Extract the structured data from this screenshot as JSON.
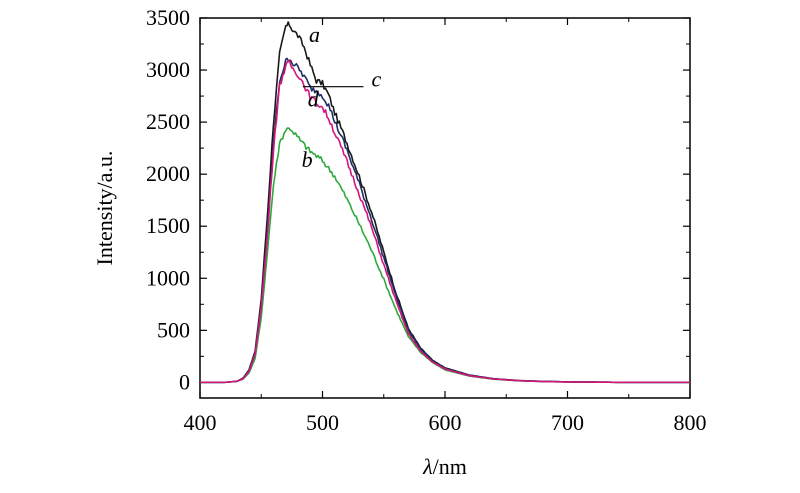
{
  "chart_data": {
    "type": "line",
    "title": "",
    "xlabel": {
      "symbol": "λ",
      "unit": "/nm"
    },
    "ylabel": "Intensity/a.u.",
    "xlim": [
      400,
      800
    ],
    "ylim": [
      -150,
      3500
    ],
    "xticks": [
      400,
      500,
      600,
      700,
      800
    ],
    "yticks": [
      0,
      500,
      1000,
      1500,
      2000,
      2500,
      3000,
      3500
    ],
    "grid": false,
    "legend": "inline-labels",
    "series": [
      {
        "name": "a",
        "color": "#1a1a1a",
        "points": [
          [
            400,
            0
          ],
          [
            420,
            0
          ],
          [
            430,
            10
          ],
          [
            435,
            40
          ],
          [
            440,
            120
          ],
          [
            445,
            300
          ],
          [
            450,
            800
          ],
          [
            455,
            1600
          ],
          [
            460,
            2500
          ],
          [
            465,
            3150
          ],
          [
            470,
            3420
          ],
          [
            473,
            3440
          ],
          [
            476,
            3380
          ],
          [
            480,
            3330
          ],
          [
            485,
            3220
          ],
          [
            490,
            3050
          ],
          [
            495,
            2900
          ],
          [
            500,
            2870
          ],
          [
            505,
            2760
          ],
          [
            510,
            2590
          ],
          [
            520,
            2300
          ],
          [
            530,
            1980
          ],
          [
            540,
            1640
          ],
          [
            550,
            1250
          ],
          [
            560,
            860
          ],
          [
            570,
            520
          ],
          [
            580,
            330
          ],
          [
            590,
            210
          ],
          [
            600,
            140
          ],
          [
            620,
            70
          ],
          [
            640,
            35
          ],
          [
            660,
            18
          ],
          [
            680,
            10
          ],
          [
            700,
            5
          ],
          [
            750,
            0
          ],
          [
            800,
            0
          ]
        ]
      },
      {
        "name": "b",
        "color": "#2eaa3c",
        "points": [
          [
            400,
            0
          ],
          [
            420,
            0
          ],
          [
            430,
            10
          ],
          [
            435,
            30
          ],
          [
            440,
            90
          ],
          [
            445,
            230
          ],
          [
            450,
            620
          ],
          [
            455,
            1250
          ],
          [
            460,
            1900
          ],
          [
            465,
            2300
          ],
          [
            470,
            2430
          ],
          [
            474,
            2440
          ],
          [
            478,
            2380
          ],
          [
            482,
            2320
          ],
          [
            490,
            2220
          ],
          [
            500,
            2130
          ],
          [
            510,
            1980
          ],
          [
            520,
            1760
          ],
          [
            530,
            1520
          ],
          [
            540,
            1270
          ],
          [
            550,
            990
          ],
          [
            560,
            700
          ],
          [
            570,
            440
          ],
          [
            580,
            290
          ],
          [
            590,
            190
          ],
          [
            600,
            120
          ],
          [
            620,
            60
          ],
          [
            640,
            30
          ],
          [
            660,
            15
          ],
          [
            680,
            8
          ],
          [
            700,
            4
          ],
          [
            750,
            0
          ],
          [
            800,
            0
          ]
        ]
      },
      {
        "name": "c",
        "color": "#1f2e66",
        "points": [
          [
            400,
            0
          ],
          [
            420,
            0
          ],
          [
            430,
            10
          ],
          [
            435,
            35
          ],
          [
            440,
            110
          ],
          [
            445,
            280
          ],
          [
            450,
            750
          ],
          [
            455,
            1450
          ],
          [
            460,
            2300
          ],
          [
            465,
            2900
          ],
          [
            470,
            3080
          ],
          [
            473,
            3120
          ],
          [
            476,
            3060
          ],
          [
            480,
            3020
          ],
          [
            485,
            2940
          ],
          [
            490,
            2830
          ],
          [
            495,
            2800
          ],
          [
            500,
            2760
          ],
          [
            505,
            2660
          ],
          [
            510,
            2510
          ],
          [
            520,
            2230
          ],
          [
            530,
            1910
          ],
          [
            540,
            1570
          ],
          [
            550,
            1200
          ],
          [
            560,
            830
          ],
          [
            570,
            500
          ],
          [
            580,
            320
          ],
          [
            590,
            205
          ],
          [
            600,
            135
          ],
          [
            620,
            68
          ],
          [
            640,
            34
          ],
          [
            660,
            17
          ],
          [
            680,
            9
          ],
          [
            700,
            5
          ],
          [
            750,
            0
          ],
          [
            800,
            0
          ]
        ]
      },
      {
        "name": "d",
        "color": "#d4157a",
        "points": [
          [
            400,
            0
          ],
          [
            420,
            0
          ],
          [
            430,
            10
          ],
          [
            435,
            33
          ],
          [
            440,
            105
          ],
          [
            445,
            270
          ],
          [
            450,
            720
          ],
          [
            455,
            1400
          ],
          [
            460,
            2250
          ],
          [
            465,
            2850
          ],
          [
            470,
            3040
          ],
          [
            473,
            3070
          ],
          [
            476,
            3010
          ],
          [
            480,
            2960
          ],
          [
            485,
            2860
          ],
          [
            490,
            2740
          ],
          [
            495,
            2690
          ],
          [
            500,
            2640
          ],
          [
            505,
            2540
          ],
          [
            510,
            2400
          ],
          [
            520,
            2120
          ],
          [
            530,
            1810
          ],
          [
            540,
            1490
          ],
          [
            550,
            1130
          ],
          [
            560,
            780
          ],
          [
            570,
            470
          ],
          [
            580,
            300
          ],
          [
            590,
            195
          ],
          [
            600,
            128
          ],
          [
            620,
            64
          ],
          [
            640,
            32
          ],
          [
            660,
            16
          ],
          [
            680,
            8
          ],
          [
            700,
            4
          ],
          [
            750,
            0
          ],
          [
            800,
            0
          ]
        ]
      }
    ],
    "annotations": [
      {
        "text": "a",
        "near": [
          489,
          3270
        ]
      },
      {
        "text": "c",
        "near": [
          540,
          2840
        ]
      },
      {
        "text": "d",
        "near": [
          488,
          2650
        ]
      },
      {
        "text": "b",
        "near": [
          483,
          2070
        ]
      }
    ]
  }
}
